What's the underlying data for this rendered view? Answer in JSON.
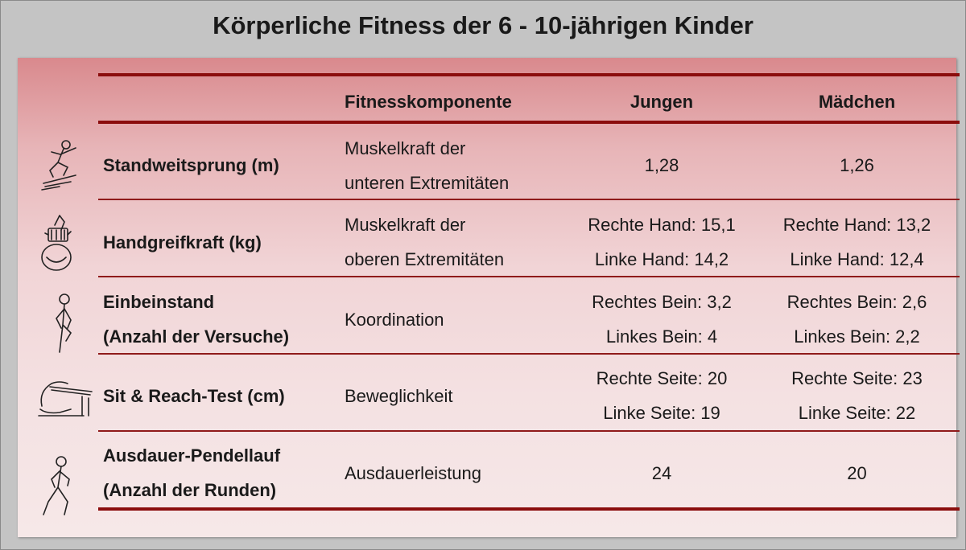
{
  "title": "Körperliche Fitness der 6 - 10-jährigen Kinder",
  "headers": {
    "component": "Fitnesskomponente",
    "boys": "Jungen",
    "girls": "Mädchen"
  },
  "rows": [
    {
      "test": [
        "Standweitsprung (m)"
      ],
      "icon": "standing-long-jump-icon",
      "component": [
        "Muskelkraft der",
        "unteren Extremitäten"
      ],
      "boys": [
        "1,28"
      ],
      "girls": [
        "1,26"
      ]
    },
    {
      "test": [
        "Handgreifkraft (kg)"
      ],
      "icon": "hand-grip-icon",
      "component": [
        "Muskelkraft der",
        "oberen Extremitäten"
      ],
      "boys": [
        "Rechte Hand: 15,1",
        "Linke Hand: 14,2"
      ],
      "girls": [
        "Rechte Hand: 13,2",
        "Linke Hand: 12,4"
      ]
    },
    {
      "test": [
        "Einbeinstand",
        "(Anzahl der Versuche)"
      ],
      "icon": "one-leg-stand-icon",
      "component": [
        "Koordination"
      ],
      "boys": [
        "Rechtes Bein: 3,2",
        "Linkes Bein: 4"
      ],
      "girls": [
        "Rechtes Bein: 2,6",
        "Linkes Bein: 2,2"
      ]
    },
    {
      "test": [
        "Sit & Reach-Test (cm)"
      ],
      "icon": "sit-and-reach-icon",
      "component": [
        "Beweglichkeit"
      ],
      "boys": [
        "Rechte Seite: 20",
        "Linke Seite: 19"
      ],
      "girls": [
        "Rechte Seite: 23",
        "Linke Seite: 22"
      ]
    },
    {
      "test": [
        "Ausdauer-Pendellauf",
        "(Anzahl der Runden)"
      ],
      "icon": "shuttle-run-icon",
      "component": [
        "Ausdauerleistung"
      ],
      "boys": [
        "24"
      ],
      "girls": [
        "20"
      ]
    }
  ]
}
